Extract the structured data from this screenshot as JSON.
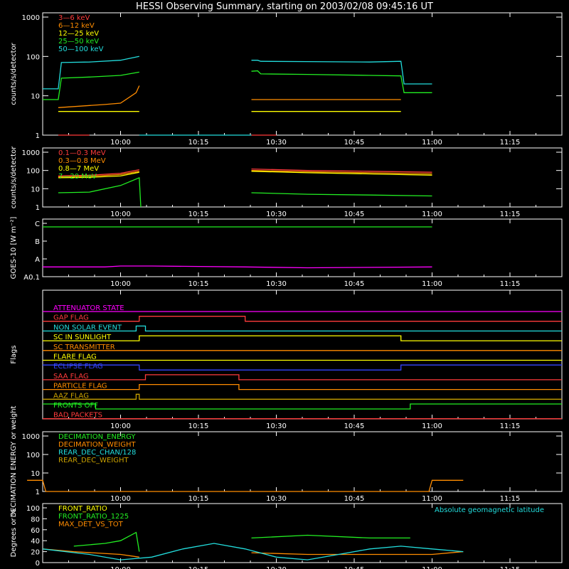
{
  "page": {
    "title": "HESSI Observing Summary, starting on 2003/02/08 09:45:16 UT"
  },
  "chart_data": [
    {
      "name": "panel-1",
      "type": "line",
      "ylabel": "counts/s/detector",
      "yscale": "log",
      "ylim": [
        1,
        1000
      ],
      "yticks": [
        "1",
        "10",
        "100",
        "1000"
      ],
      "xticks": [
        "10:00",
        "10:15",
        "10:30",
        "10:45",
        "11:00",
        "11:15"
      ],
      "series": [
        {
          "name": "3—6 keV",
          "color": "#ff3b3b",
          "segments": [
            [
              [
                9.8,
                1.0
              ],
              [
                9.9,
                1.0
              ]
            ],
            [
              [
                10.42,
                1.0
              ],
              [
                10.5,
                1.0
              ]
            ]
          ]
        },
        {
          "name": "6—12 keV",
          "color": "#ff8c00",
          "segments": [
            [
              [
                9.8,
                5.0
              ],
              [
                9.95,
                6.0
              ],
              [
                10.0,
                6.5
              ],
              [
                10.05,
                12.0
              ],
              [
                10.06,
                18.0
              ]
            ],
            [
              [
                10.42,
                8.0
              ],
              [
                10.6,
                8.0
              ],
              [
                10.8,
                8.0
              ],
              [
                10.9,
                8.0
              ]
            ]
          ]
        },
        {
          "name": "12—25 keV",
          "color": "#ffff00",
          "segments": [
            [
              [
                9.8,
                4.0
              ],
              [
                10.06,
                4.0
              ]
            ],
            [
              [
                10.42,
                4.0
              ],
              [
                10.6,
                4.0
              ],
              [
                10.8,
                4.0
              ],
              [
                10.9,
                4.0
              ]
            ]
          ]
        },
        {
          "name": "25—50 keV",
          "color": "#22ee22",
          "segments": [
            [
              [
                9.75,
                8.0
              ],
              [
                9.8,
                8.0
              ],
              [
                9.81,
                28.0
              ],
              [
                9.9,
                30.0
              ],
              [
                10.0,
                33.0
              ],
              [
                10.06,
                40.0
              ]
            ],
            [
              [
                10.42,
                42.0
              ],
              [
                10.44,
                43.0
              ],
              [
                10.45,
                36.0
              ],
              [
                10.6,
                35.0
              ],
              [
                10.8,
                33.0
              ],
              [
                10.9,
                32.0
              ],
              [
                10.91,
                12.0
              ],
              [
                11.0,
                12.0
              ]
            ]
          ]
        },
        {
          "name": "50—100 keV",
          "color": "#22dddd",
          "segments": [
            [
              [
                9.75,
                15.0
              ],
              [
                9.8,
                15.0
              ],
              [
                9.81,
                70.0
              ],
              [
                9.9,
                72.0
              ],
              [
                10.0,
                80.0
              ],
              [
                10.06,
                100.0
              ]
            ],
            [
              [
                10.06,
                1.0
              ],
              [
                10.42,
                1.0
              ]
            ],
            [
              [
                10.42,
                80.0
              ],
              [
                10.44,
                80.0
              ],
              [
                10.45,
                75.0
              ],
              [
                10.6,
                74.0
              ],
              [
                10.8,
                72.0
              ],
              [
                10.9,
                75.0
              ],
              [
                10.91,
                20.0
              ],
              [
                11.0,
                20.0
              ]
            ]
          ]
        }
      ]
    },
    {
      "name": "panel-2",
      "type": "line",
      "ylabel": "counts/s/detector",
      "yscale": "log",
      "ylim": [
        1,
        1000
      ],
      "yticks": [
        "1",
        "10",
        "100",
        "1000"
      ],
      "xticks": [
        "10:00",
        "10:15",
        "10:30",
        "10:45",
        "11:00",
        "11:15"
      ],
      "series": [
        {
          "name": "0.1—0.3 MeV",
          "color": "#ff3b3b",
          "segments": [
            [
              [
                9.8,
                50.0
              ],
              [
                9.9,
                55.0
              ],
              [
                10.0,
                70.0
              ],
              [
                10.06,
                110.0
              ]
            ],
            [
              [
                10.42,
                120.0
              ],
              [
                10.6,
                100.0
              ],
              [
                10.8,
                90.0
              ],
              [
                11.0,
                80.0
              ]
            ]
          ]
        },
        {
          "name": "0.3—0.8 MeV",
          "color": "#ff8c00",
          "segments": [
            [
              [
                9.8,
                45.0
              ],
              [
                9.9,
                48.0
              ],
              [
                10.0,
                60.0
              ],
              [
                10.06,
                90.0
              ]
            ],
            [
              [
                10.42,
                100.0
              ],
              [
                10.6,
                85.0
              ],
              [
                10.8,
                75.0
              ],
              [
                11.0,
                65.0
              ]
            ]
          ]
        },
        {
          "name": "0.8—7 MeV",
          "color": "#ffff00",
          "segments": [
            [
              [
                9.8,
                40.0
              ],
              [
                9.9,
                42.0
              ],
              [
                10.0,
                50.0
              ],
              [
                10.06,
                80.0
              ]
            ],
            [
              [
                10.42,
                90.0
              ],
              [
                10.6,
                75.0
              ],
              [
                10.8,
                65.0
              ],
              [
                11.0,
                55.0
              ]
            ]
          ]
        },
        {
          "name": "7—20 MeV",
          "color": "#22ee22",
          "segments": [
            [
              [
                9.8,
                6.0
              ],
              [
                9.9,
                6.5
              ],
              [
                10.0,
                15.0
              ],
              [
                10.06,
                40.0
              ],
              [
                10.065,
                1.0
              ]
            ],
            [
              [
                10.42,
                6.0
              ],
              [
                10.6,
                5.0
              ],
              [
                10.8,
                4.5
              ],
              [
                11.0,
                4.0
              ]
            ]
          ]
        }
      ]
    },
    {
      "name": "panel-goes",
      "type": "line",
      "ylabel": "GOES-10 [W m⁻²]",
      "yticks": [
        "A0.1",
        "A",
        "B",
        "C"
      ],
      "ylim": [
        0,
        3
      ],
      "xticks": [
        "10:00",
        "10:15",
        "10:30",
        "10:45",
        "11:00",
        "11:15"
      ],
      "series": [
        {
          "color": "#22ee22",
          "segments": [
            [
              [
                9.75,
                2.8
              ],
              [
                11.0,
                2.8
              ]
            ]
          ]
        },
        {
          "color": "#ff00ff",
          "segments": [
            [
              [
                9.75,
                0.55
              ],
              [
                9.95,
                0.55
              ],
              [
                10.0,
                0.6
              ],
              [
                10.1,
                0.6
              ],
              [
                10.4,
                0.55
              ],
              [
                10.6,
                0.5
              ],
              [
                11.0,
                0.55
              ]
            ]
          ]
        }
      ]
    },
    {
      "name": "panel-flags",
      "type": "step",
      "ylabel": "Flags",
      "xticks": [
        "10:00",
        "10:15",
        "10:30",
        "10:45",
        "11:00",
        "11:15"
      ],
      "flags": [
        {
          "label": "ATTENUATOR STATE",
          "color": "#ff00ff",
          "steps": [
            [
              9.75,
              0
            ],
            [
              11.0,
              0
            ]
          ]
        },
        {
          "label": "GAP FLAG",
          "color": "#ff3b3b",
          "steps": [
            [
              9.75,
              0
            ],
            [
              10.06,
              1
            ],
            [
              10.4,
              0
            ],
            [
              10.42,
              0
            ]
          ]
        },
        {
          "label": "NON SOLAR EVENT",
          "color": "#22dddd",
          "steps": [
            [
              9.75,
              0
            ],
            [
              10.05,
              1
            ],
            [
              10.08,
              0
            ],
            [
              11.0,
              0
            ]
          ]
        },
        {
          "label": "SC IN SUNLIGHT",
          "color": "#ffff00",
          "steps": [
            [
              9.75,
              0
            ],
            [
              10.06,
              1
            ],
            [
              10.9,
              0
            ],
            [
              11.0,
              0
            ]
          ]
        },
        {
          "label": "SC TRANSMITTER",
          "color": "#ff8c00",
          "steps": [
            [
              9.75,
              0
            ],
            [
              11.0,
              0
            ]
          ]
        },
        {
          "label": "FLARE FLAG",
          "color": "#ffff00",
          "steps": [
            [
              9.75,
              0
            ],
            [
              11.0,
              0
            ]
          ]
        },
        {
          "label": "ECLIPSE FLAG",
          "color": "#3344ff",
          "steps": [
            [
              9.75,
              1
            ],
            [
              10.06,
              0
            ],
            [
              10.9,
              1
            ],
            [
              11.0,
              1
            ]
          ]
        },
        {
          "label": "SAA FLAG",
          "color": "#ff3b3b",
          "steps": [
            [
              9.75,
              0
            ],
            [
              10.08,
              1
            ],
            [
              10.38,
              0
            ],
            [
              11.0,
              0
            ]
          ]
        },
        {
          "label": "PARTICLE FLAG",
          "color": "#ff8c00",
          "steps": [
            [
              9.75,
              0
            ],
            [
              10.06,
              1
            ],
            [
              10.38,
              0
            ],
            [
              11.0,
              0
            ]
          ]
        },
        {
          "label": "AAZ FLAG",
          "color": "#c8a000",
          "steps": [
            [
              9.75,
              0
            ],
            [
              10.05,
              1
            ],
            [
              10.06,
              0
            ],
            [
              11.0,
              0
            ]
          ]
        },
        {
          "label": "FRONTS OFF",
          "color": "#22ee22",
          "steps": [
            [
              9.75,
              1
            ],
            [
              9.92,
              0
            ],
            [
              10.93,
              1
            ],
            [
              11.0,
              1
            ]
          ]
        },
        {
          "label": "BAD PACKETS",
          "color": "#ff3b3b",
          "steps": [
            [
              9.75,
              0
            ],
            [
              11.0,
              0
            ]
          ]
        }
      ]
    },
    {
      "name": "panel-decimation",
      "type": "line",
      "ylabel": "DECIMATION ENERGY or weight",
      "yscale": "log",
      "ylim": [
        1,
        1000
      ],
      "yticks": [
        "1",
        "10",
        "100",
        "1000"
      ],
      "xticks": [
        "10:00",
        "10:15",
        "10:30",
        "10:45",
        "11:00",
        "11:15"
      ],
      "series": [
        {
          "name": "DECIMATION_ENERGY",
          "color": "#22ee22",
          "segments": []
        },
        {
          "name": "DECIMATION_WEIGHT",
          "color": "#ff8c00",
          "segments": [
            [
              [
                9.7,
                4.0
              ],
              [
                9.75,
                4.0
              ],
              [
                9.76,
                1.0
              ],
              [
                10.99,
                1.0
              ],
              [
                11.0,
                4.0
              ],
              [
                11.1,
                4.0
              ]
            ]
          ]
        },
        {
          "name": "REAR_DEC_CHAN/128",
          "color": "#22dddd",
          "segments": []
        },
        {
          "name": "REAR_DEC_WEIGHT",
          "color": "#c8a000",
          "segments": []
        }
      ]
    },
    {
      "name": "panel-ratio",
      "type": "line",
      "ylabel": "Degrees or %",
      "ylim": [
        0,
        100
      ],
      "yticks": [
        "0",
        "20",
        "40",
        "60",
        "80",
        "100"
      ],
      "xticks": [
        "10:00",
        "10:15",
        "10:30",
        "10:45",
        "11:00",
        "11:15"
      ],
      "annotation": "Absolute geomagnetic latitude",
      "series": [
        {
          "name": "FRONT_RATIO",
          "color": "#ffff00",
          "segments": []
        },
        {
          "name": "FRONT_RATIO_1225",
          "color": "#22ee22",
          "segments": [
            [
              [
                9.85,
                30.0
              ],
              [
                9.95,
                35.0
              ],
              [
                10.0,
                40.0
              ],
              [
                10.05,
                55.0
              ],
              [
                10.06,
                20.0
              ]
            ],
            [
              [
                10.42,
                45.0
              ],
              [
                10.6,
                50.0
              ],
              [
                10.8,
                45.0
              ],
              [
                10.93,
                45.0
              ]
            ]
          ]
        },
        {
          "name": "MAX_DET_VS_TOT",
          "color": "#ff8c00",
          "segments": [
            [
              [
                9.75,
                25.0
              ],
              [
                9.85,
                20.0
              ],
              [
                10.0,
                15.0
              ],
              [
                10.06,
                10.0
              ]
            ],
            [
              [
                10.42,
                18.0
              ],
              [
                10.6,
                15.0
              ],
              [
                10.8,
                15.0
              ],
              [
                11.0,
                15.0
              ],
              [
                11.1,
                20.0
              ]
            ]
          ]
        },
        {
          "name": "Absolute geomagnetic latitude",
          "color": "#22dddd",
          "segments": [
            [
              [
                9.75,
                25.0
              ],
              [
                9.9,
                15.0
              ],
              [
                10.0,
                5.0
              ],
              [
                10.1,
                10.0
              ],
              [
                10.2,
                25.0
              ],
              [
                10.3,
                35.0
              ],
              [
                10.4,
                25.0
              ],
              [
                10.5,
                10.0
              ],
              [
                10.6,
                5.0
              ],
              [
                10.7,
                15.0
              ],
              [
                10.8,
                25.0
              ],
              [
                10.9,
                30.0
              ],
              [
                11.0,
                25.0
              ],
              [
                11.1,
                20.0
              ]
            ]
          ]
        }
      ]
    }
  ]
}
